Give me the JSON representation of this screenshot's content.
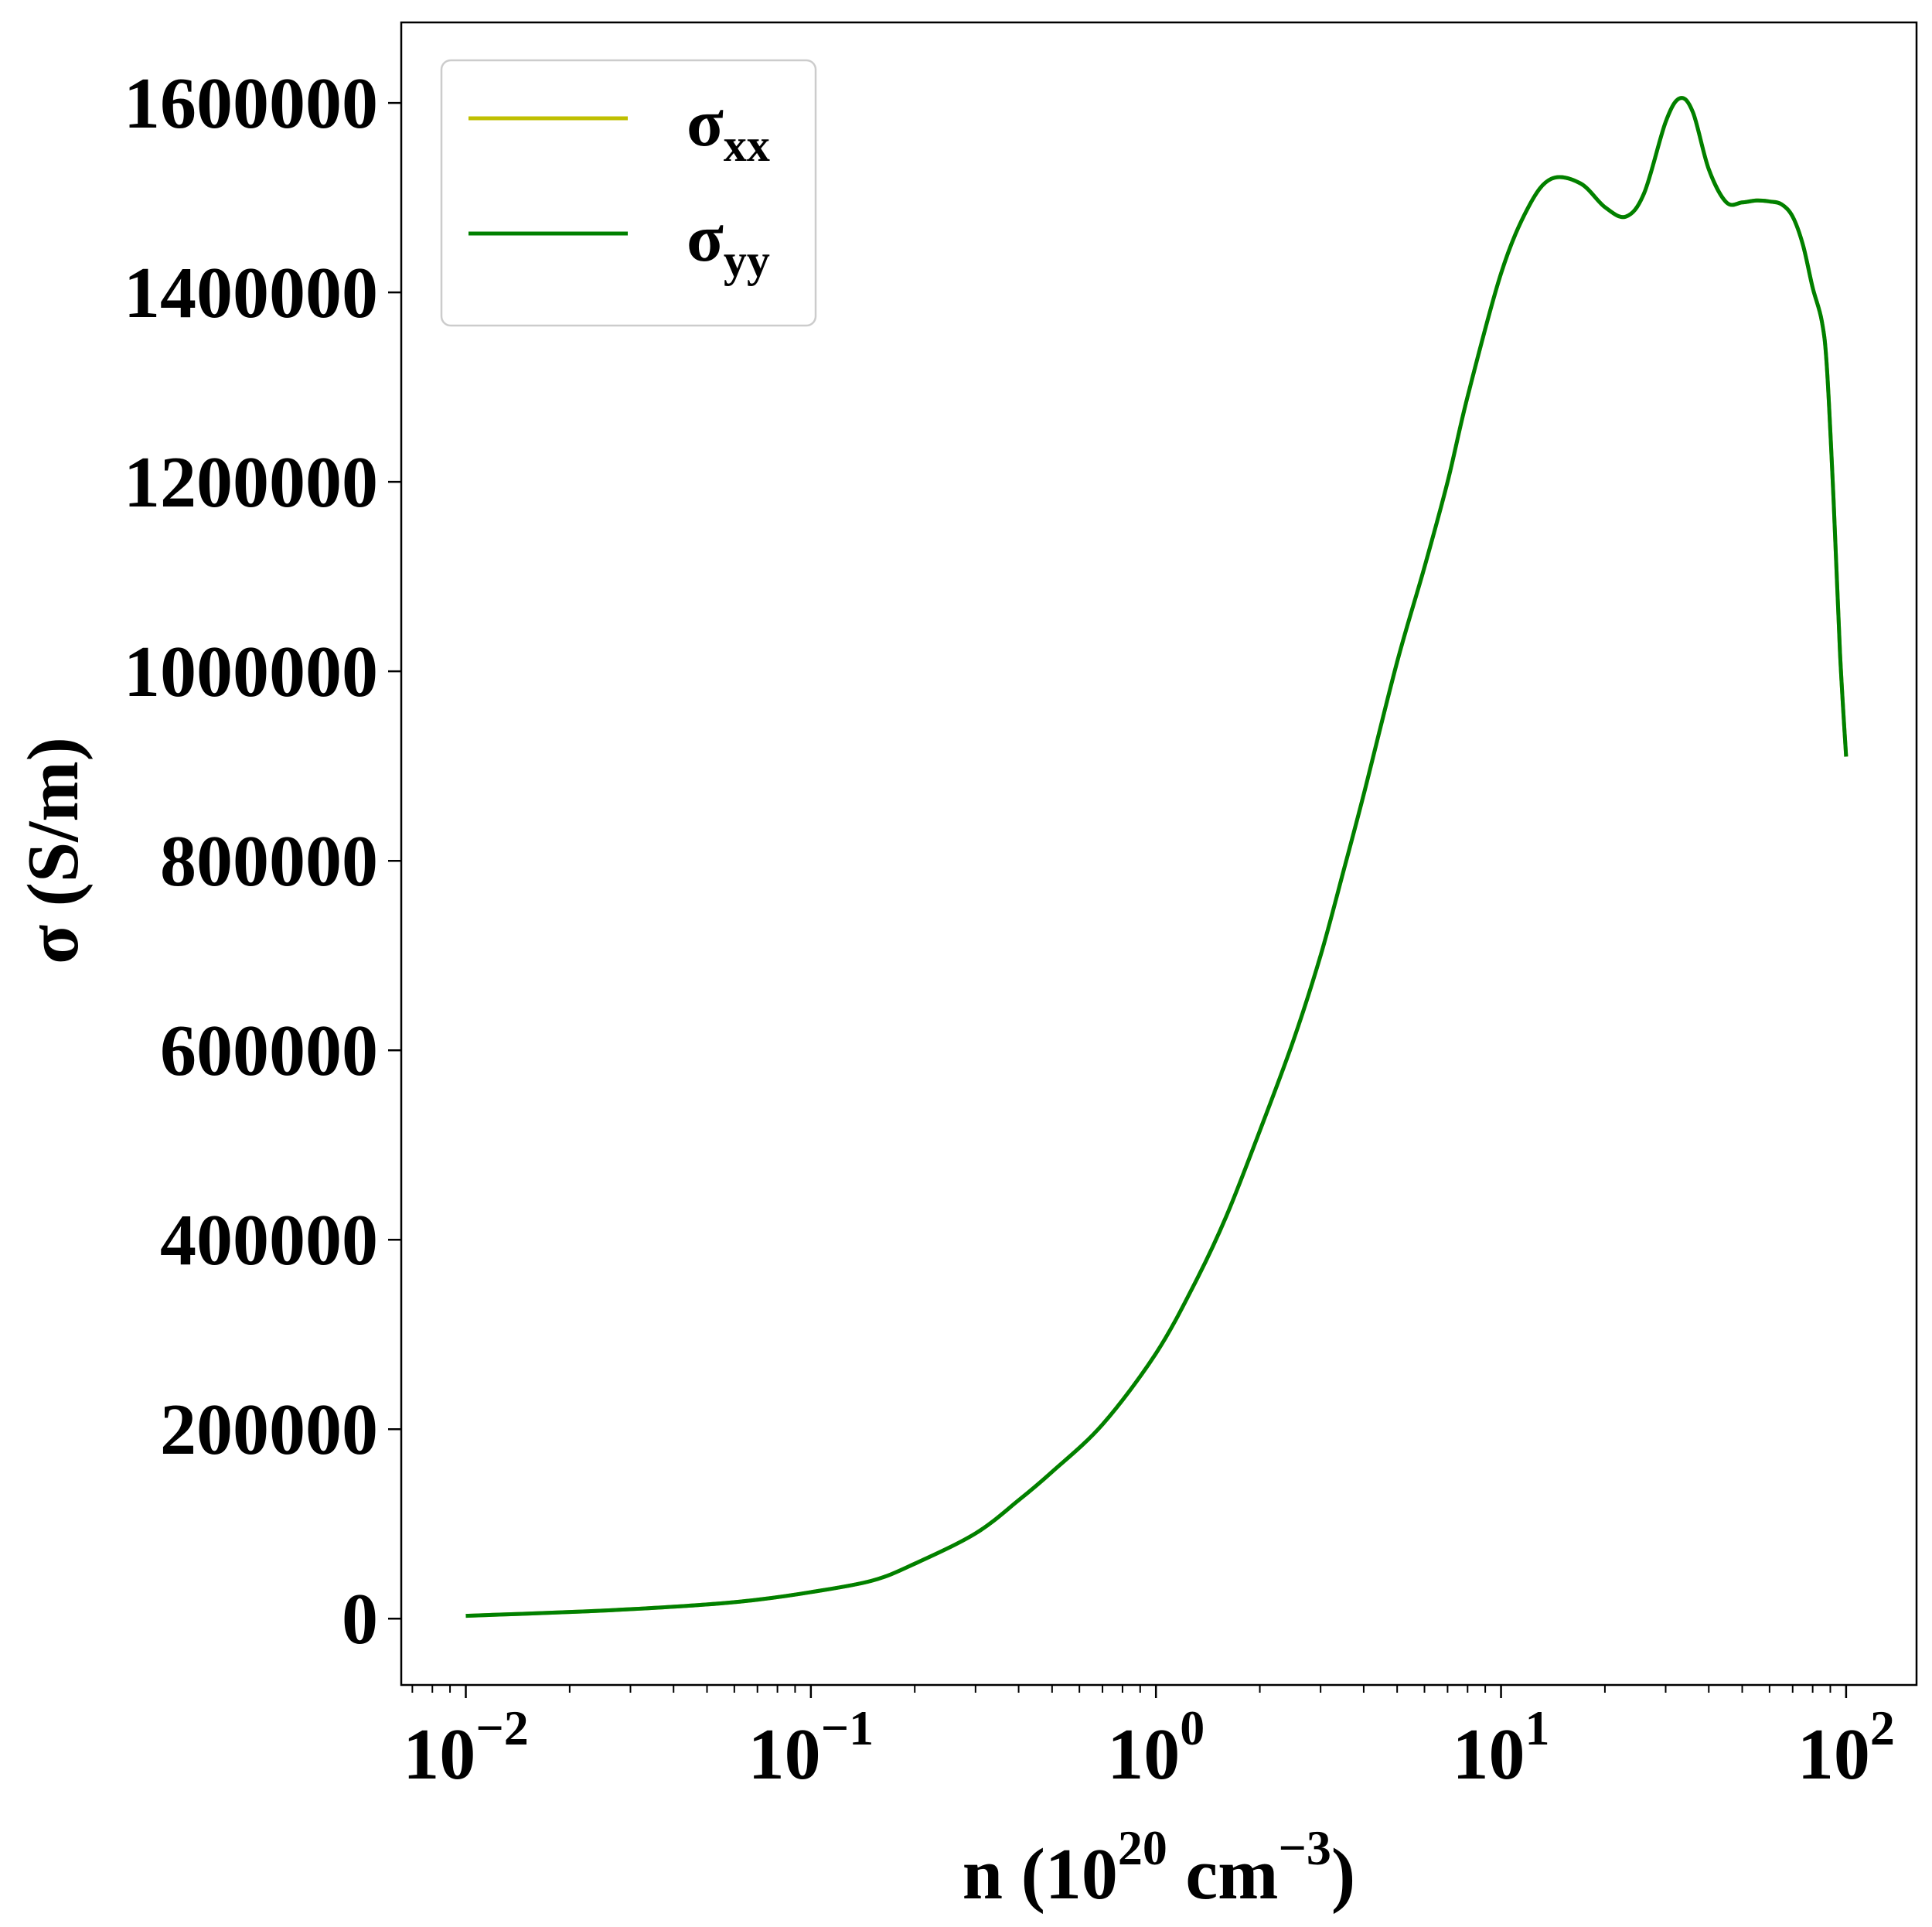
{
  "chart_data": {
    "type": "line",
    "title": "",
    "xscale": "log",
    "xlim": [
      0.0065,
      160
    ],
    "ylim": [
      -70000,
      1685000
    ],
    "grid": false,
    "legend": {
      "placement": "top-left"
    },
    "xlabel_parts": {
      "base": "n (10",
      "sup1": "20",
      "mid": " cm",
      "sup2": "−3",
      "end": ")"
    },
    "ylabel": "σ (S/m)",
    "x_ticks": [
      {
        "base": "10",
        "exp": "−2",
        "value": 0.01
      },
      {
        "base": "10",
        "exp": "−1",
        "value": 0.1
      },
      {
        "base": "10",
        "exp": "0",
        "value": 1
      },
      {
        "base": "10",
        "exp": "1",
        "value": 10
      },
      {
        "base": "10",
        "exp": "2",
        "value": 100
      }
    ],
    "y_ticks": [
      {
        "label": "0",
        "value": 0
      },
      {
        "label": "200000",
        "value": 200000
      },
      {
        "label": "400000",
        "value": 400000
      },
      {
        "label": "600000",
        "value": 600000
      },
      {
        "label": "800000",
        "value": 800000
      },
      {
        "label": "1000000",
        "value": 1000000
      },
      {
        "label": "1200000",
        "value": 1200000
      },
      {
        "label": "1400000",
        "value": 1400000
      },
      {
        "label": "1600000",
        "value": 1600000
      }
    ],
    "x": [
      0.01,
      0.02,
      0.03,
      0.05,
      0.07,
      0.1,
      0.15,
      0.2,
      0.3,
      0.4,
      0.5,
      0.7,
      1.0,
      1.3,
      1.6,
      2.0,
      2.5,
      3.0,
      3.5,
      4.0,
      5.0,
      6.0,
      7.0,
      8.0,
      10.0,
      12.0,
      14.0,
      17.0,
      20.0,
      23.0,
      26.0,
      30.0,
      33.0,
      36.0,
      40.0,
      45.0,
      50.0,
      55.0,
      60.0,
      65.0,
      70.0,
      75.0,
      80.0,
      85.0,
      88.0,
      92.0,
      96.0,
      100.0
    ],
    "series": [
      {
        "name_base": "σ",
        "name_sub": "xx",
        "color": "#bfbf00",
        "values": [
          3000,
          7000,
          10000,
          15000,
          20000,
          28000,
          40000,
          58000,
          90000,
          125000,
          155000,
          205000,
          280000,
          355000,
          425000,
          515000,
          610000,
          700000,
          790000,
          870000,
          1010000,
          1110000,
          1200000,
          1290000,
          1420000,
          1490000,
          1520000,
          1515000,
          1490000,
          1480000,
          1505000,
          1580000,
          1605000,
          1590000,
          1530000,
          1495000,
          1495000,
          1497000,
          1496000,
          1493000,
          1480000,
          1450000,
          1405000,
          1370000,
          1320000,
          1180000,
          1020000,
          910000
        ]
      },
      {
        "name_base": "σ",
        "name_sub": "yy",
        "color": "#008000",
        "values": [
          3000,
          7000,
          10000,
          15000,
          20000,
          28000,
          40000,
          58000,
          90000,
          125000,
          155000,
          205000,
          280000,
          355000,
          425000,
          515000,
          610000,
          700000,
          790000,
          870000,
          1010000,
          1110000,
          1200000,
          1290000,
          1420000,
          1490000,
          1520000,
          1515000,
          1490000,
          1480000,
          1505000,
          1580000,
          1605000,
          1590000,
          1530000,
          1495000,
          1495000,
          1497000,
          1496000,
          1493000,
          1480000,
          1450000,
          1405000,
          1370000,
          1320000,
          1180000,
          1020000,
          910000
        ]
      }
    ]
  }
}
